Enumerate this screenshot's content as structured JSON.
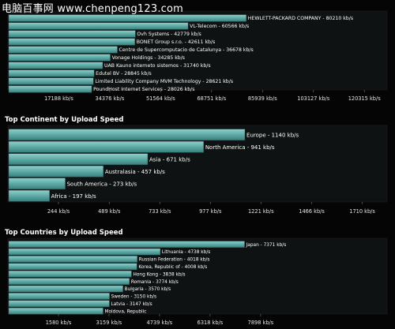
{
  "watermark": {
    "text": "电脑百事网 www.chenpeng123.com"
  },
  "corner_mark": "",
  "colors": {
    "background": "#050505",
    "panel": "#0f1212",
    "bar_fill": "#5aa6a2",
    "bar_edge": "#8fd0cb",
    "text": "#ffffff",
    "axis_text": "#e6e6e6"
  },
  "chart_data": [
    {
      "type": "bar",
      "orientation": "horizontal",
      "title": "",
      "categories": [
        "HEWLETT-PACKARD COMPANY",
        "VL-Telecom",
        "Ovh Systems",
        "BONET Group s.r.o.",
        "Centre de Supercomputacio de Catalunya",
        "Vonage Holdings",
        "UAB Kauno interneto sistemos",
        "Edutel BV",
        "Limited Liability Company MVM Technology",
        "PoundHost Internet Services"
      ],
      "values": [
        80210,
        60566,
        42779,
        42611,
        36678,
        34285,
        31740,
        28845,
        28621,
        28026
      ],
      "bar_labels": [
        "HEWLETT-PACKARD COMPANY - 80210 kb/s",
        "VL-Telecom - 60566 kb/s",
        "Ovh Systems - 42779 kb/s",
        "BONET Group s.r.o. - 42611 kb/s",
        "Centre de Supercomputacio de Catalunya - 36678 kb/s",
        "Vonage Holdings - 34285 kb/s",
        "UAB Kauno interneto sistemos - 31740 kb/s",
        "Edutel BV - 28845 kb/s",
        "Limited Liability Company MVM Technology - 28621 kb/s",
        "PoundHost Internet Services - 28026 kb/s"
      ],
      "xlim": [
        0,
        128000
      ],
      "ticks": [
        17188,
        34376,
        51564,
        68751,
        85939,
        103127,
        120315
      ],
      "tick_labels": [
        "17188 kb/s",
        "34376 kb/s",
        "51564 kb/s",
        "68751 kb/s",
        "85939 kb/s",
        "103127 kb/s",
        "120315 kb/s"
      ],
      "grid": false
    },
    {
      "type": "bar",
      "orientation": "horizontal",
      "title": "Top Continent by Upload Speed",
      "categories": [
        "Europe",
        "North America",
        "Asia",
        "Australasia",
        "South America",
        "Africa"
      ],
      "values": [
        1140,
        941,
        671,
        457,
        273,
        197
      ],
      "bar_labels": [
        "Europe - 1140 kb/s",
        "North America - 941 kb/s",
        "Asia - 671 kb/s",
        "Australasia - 457 kb/s",
        "South America - 273 kb/s",
        "Africa - 197 kb/s"
      ],
      "xlim": [
        0,
        1830
      ],
      "ticks": [
        244,
        489,
        733,
        977,
        1221,
        1466,
        1710
      ],
      "tick_labels": [
        "244 kb/s",
        "489 kb/s",
        "733 kb/s",
        "977 kb/s",
        "1221 kb/s",
        "1466 kb/s",
        "1710 kb/s"
      ],
      "grid": false
    },
    {
      "type": "bar",
      "orientation": "horizontal",
      "title": "Top Countries by Upload Speed",
      "categories": [
        "Japan",
        "Lithuania",
        "Russian Federation",
        "Korea, Republic of",
        "Hong Kong",
        "Romania",
        "Bulgaria",
        "Sweden",
        "Latvia",
        "Moldova, Republic"
      ],
      "values": [
        7371,
        4738,
        4018,
        4008,
        3838,
        3774,
        3570,
        3150,
        3147,
        2950
      ],
      "bar_labels": [
        "Japan - 7371 kb/s",
        "Lithuania - 4738 kb/s",
        "Russian Federation - 4018 kb/s",
        "Korea, Republic of - 4008 kb/s",
        "Hong Kong - 3838 kb/s",
        "Romania - 3774 kb/s",
        "Bulgaria - 3570 kb/s",
        "Sweden - 3150 kb/s",
        "Latvia - 3147 kb/s",
        "Moldova, Republic"
      ],
      "xlim": [
        0,
        11850
      ],
      "ticks": [
        1580,
        3159,
        4739,
        6318,
        7898
      ],
      "tick_labels": [
        "1580 kb/s",
        "3159 kb/s",
        "4739 kb/s",
        "6318 kb/s",
        "7898 kb/s"
      ],
      "grid": false
    }
  ]
}
